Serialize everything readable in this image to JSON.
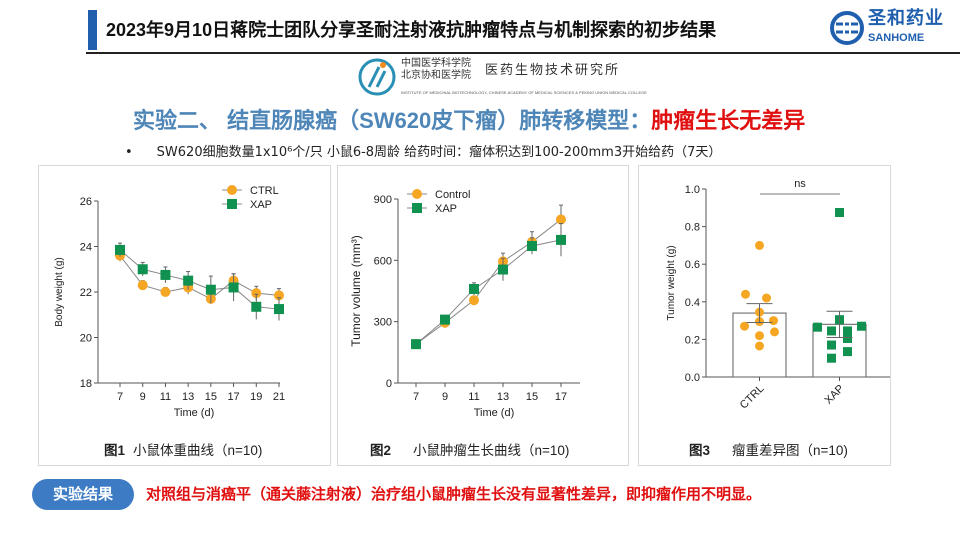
{
  "header": {
    "title": "2023年9月10日蒋院士团队分享圣耐注射液抗肿瘤特点与机制探索的初步结果"
  },
  "brand": {
    "name_cn": "圣和药业",
    "name_en": "SANHOME",
    "color": "#1f5fae"
  },
  "institute": {
    "line1": "中国医学科学院",
    "line2": "北京协和医学院",
    "name": "医药生物技术研究所",
    "english": "INSTITUTE OF MEDICINAL BIOTECHNOLOGY, CHINESE ACADEMY OF MEDICAL SCIENCES & PEKING UNION MEDICAL COLLEGE"
  },
  "subtitle": {
    "main": "实验二、 结直肠腺癌（SW620皮下瘤）肺转移模型：",
    "highlight": "肿瘤生长无差异"
  },
  "bullet": {
    "mark": "•",
    "text": "SW620细胞数量1x10⁶个/只  小鼠6-8周龄 给药时间：瘤体积达到100-200mm3开始给药（7天）"
  },
  "figures": [
    {
      "num": "图1",
      "caption": "小鼠体重曲线（n=10)"
    },
    {
      "num": "图2",
      "caption": "小鼠肿瘤生长曲线（n=10)"
    },
    {
      "num": "图3",
      "caption": "瘤重差异图（n=10)"
    }
  ],
  "result": {
    "button": "实验结果",
    "text": "对照组与消癌平（通关藤注射液）治疗组小鼠肿瘤生长没有显著性差异，即抑瘤作用不明显。"
  },
  "chart_data": [
    {
      "type": "line",
      "xlabel": "Time (d)",
      "ylabel": "Body weight (g)",
      "ylim": [
        18,
        26
      ],
      "yticks": [
        18,
        20,
        22,
        24,
        26
      ],
      "x": [
        7,
        9,
        11,
        13,
        15,
        17,
        19,
        21
      ],
      "legend_position": "top-right",
      "series": [
        {
          "name": "CTRL",
          "color": "#f5a623",
          "marker": "circle",
          "values": [
            23.6,
            22.3,
            22.0,
            22.2,
            21.7,
            22.5,
            21.95,
            21.85
          ],
          "err": [
            0.25,
            0.2,
            0.2,
            0.3,
            0.2,
            0.3,
            0.3,
            0.3
          ]
        },
        {
          "name": "XAP",
          "color": "#119150",
          "marker": "square",
          "values": [
            23.85,
            23.0,
            22.75,
            22.5,
            22.1,
            22.2,
            21.35,
            21.25
          ],
          "err": [
            0.3,
            0.3,
            0.35,
            0.4,
            0.6,
            0.6,
            0.55,
            0.5
          ]
        }
      ]
    },
    {
      "type": "line",
      "xlabel": "Time (d)",
      "ylabel": "Tumor volume (mm³)",
      "ylim": [
        0,
        900
      ],
      "yticks": [
        0,
        300,
        600,
        900
      ],
      "x": [
        7,
        9,
        11,
        13,
        15,
        17
      ],
      "legend_position": "top-left",
      "series": [
        {
          "name": "Control",
          "color": "#f5a623",
          "marker": "circle",
          "values": [
            190,
            295,
            405,
            595,
            690,
            800
          ],
          "err": [
            10,
            15,
            20,
            40,
            50,
            70
          ]
        },
        {
          "name": "XAP",
          "color": "#119150",
          "marker": "square",
          "values": [
            190,
            310,
            460,
            555,
            670,
            700
          ],
          "err": [
            10,
            20,
            30,
            55,
            40,
            80
          ]
        }
      ]
    },
    {
      "type": "bar",
      "ylabel": "Tumor weight (g)",
      "ylim": [
        0,
        1.0
      ],
      "yticks": [
        0.0,
        0.2,
        0.4,
        0.6,
        0.8,
        1.0
      ],
      "categories": [
        "CTRL",
        "XAP"
      ],
      "annotation": "ns",
      "series": [
        {
          "name": "CTRL",
          "color": "#f5a623",
          "marker": "circle",
          "mean": 0.34,
          "sem": 0.05,
          "points": [
            0.7,
            0.44,
            0.42,
            0.345,
            0.3,
            0.295,
            0.27,
            0.24,
            0.22,
            0.165
          ]
        },
        {
          "name": "XAP",
          "color": "#119150",
          "marker": "square",
          "mean": 0.28,
          "sem": 0.07,
          "points": [
            0.875,
            0.305,
            0.265,
            0.27,
            0.245,
            0.245,
            0.205,
            0.17,
            0.135,
            0.1
          ]
        }
      ]
    }
  ]
}
